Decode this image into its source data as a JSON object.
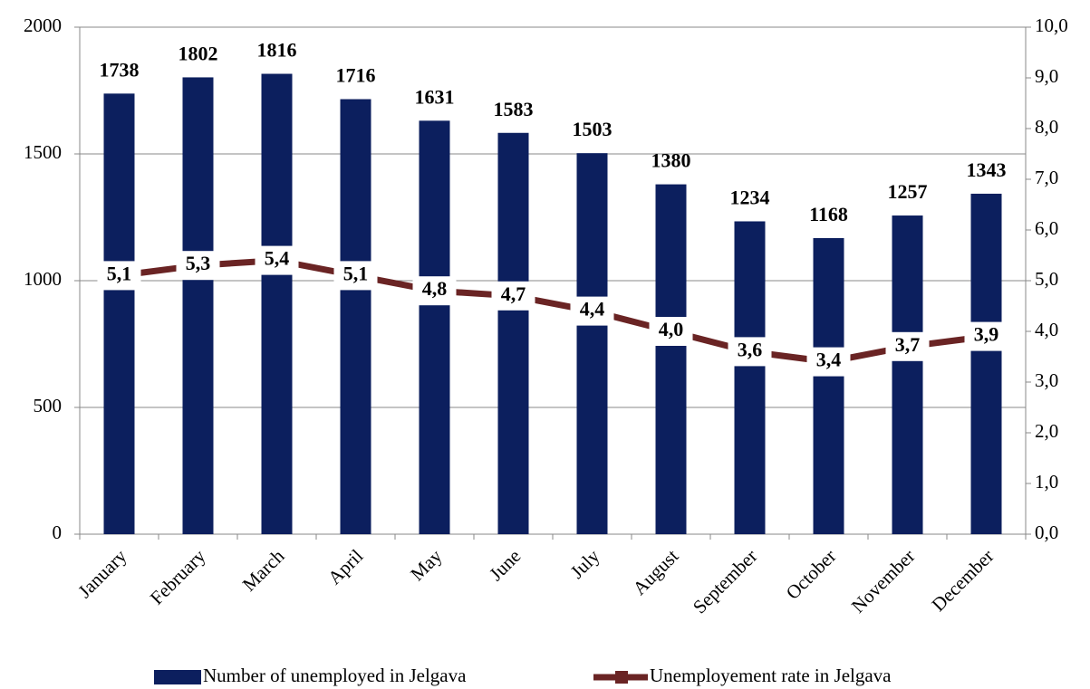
{
  "chart_data": {
    "type": "bar",
    "categories": [
      "January",
      "February",
      "March",
      "April",
      "May",
      "June",
      "July",
      "August",
      "September",
      "October",
      "November",
      "December"
    ],
    "series": [
      {
        "name": "Number of unemployed in Jelgava",
        "color": "#0c1f5e",
        "values": [
          1738,
          1802,
          1816,
          1716,
          1631,
          1583,
          1503,
          1380,
          1234,
          1168,
          1257,
          1343
        ]
      },
      {
        "name": "Unemployement rate in Jelgava",
        "color": "#6a2424",
        "type": "line",
        "axis": "y2",
        "values": [
          5.1,
          5.3,
          5.4,
          5.1,
          4.8,
          4.7,
          4.4,
          4.0,
          3.6,
          3.4,
          3.7,
          3.9
        ],
        "value_labels": [
          "5,1",
          "5,3",
          "5,4",
          "5,1",
          "4,8",
          "4,7",
          "4,4",
          "4,0",
          "3,6",
          "3,4",
          "3,7",
          "3,9"
        ]
      }
    ],
    "ylim": [
      0,
      2000
    ],
    "yticks": [
      0,
      500,
      1000,
      1500,
      2000
    ],
    "y2lim": [
      0,
      10
    ],
    "y2ticks": [
      {
        "value": 0,
        "label": "0,0"
      },
      {
        "value": 1,
        "label": "1,0"
      },
      {
        "value": 2,
        "label": "2,0"
      },
      {
        "value": 3,
        "label": "3,0"
      },
      {
        "value": 4,
        "label": "4,0"
      },
      {
        "value": 5,
        "label": "5,0"
      },
      {
        "value": 6,
        "label": "6,0"
      },
      {
        "value": 7,
        "label": "7,0"
      },
      {
        "value": 8,
        "label": "8,0"
      },
      {
        "value": 9,
        "label": "9,0"
      },
      {
        "value": 10,
        "label": "10,0"
      }
    ],
    "grid": true,
    "legend": "bottom"
  }
}
